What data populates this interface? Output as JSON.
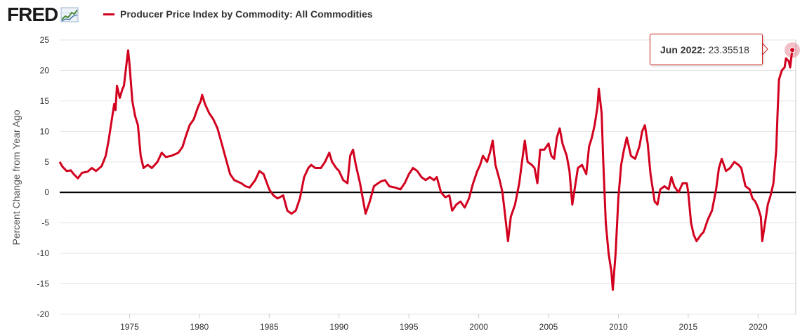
{
  "header": {
    "logo": "FRED",
    "logo_icon": "chart-line-icon",
    "legend_label": "Producer Price Index by Commodity: All Commodities"
  },
  "tooltip": {
    "date": "Jun 2022:",
    "value": "23.35518"
  },
  "colors": {
    "series": "#d2001e",
    "grid": "#e6e6e6",
    "zero_line": "#000000",
    "axis_text": "#333333"
  },
  "chart_data": {
    "type": "line",
    "title": "Producer Price Index by Commodity: All Commodities",
    "ylabel": "Percent Change from Year Ago",
    "xlabel": "",
    "xlim": [
      1970.0,
      2022.7
    ],
    "ylim": [
      -20,
      25
    ],
    "y_ticks": [
      25,
      20,
      15,
      10,
      5,
      0,
      -5,
      -10,
      -15,
      -20
    ],
    "x_ticks": [
      1975,
      1980,
      1985,
      1990,
      1995,
      2000,
      2005,
      2010,
      2015,
      2020
    ],
    "grid": "horizontal",
    "legend_placement": "top-left",
    "series": [
      {
        "name": "Producer Price Index by Commodity: All Commodities",
        "points": [
          [
            1970.0,
            5.0
          ],
          [
            1970.2,
            4.2
          ],
          [
            1970.5,
            3.5
          ],
          [
            1970.8,
            3.6
          ],
          [
            1971.0,
            3.0
          ],
          [
            1971.3,
            2.3
          ],
          [
            1971.6,
            3.2
          ],
          [
            1972.0,
            3.4
          ],
          [
            1972.3,
            4.0
          ],
          [
            1972.6,
            3.5
          ],
          [
            1973.0,
            4.3
          ],
          [
            1973.3,
            6.0
          ],
          [
            1973.5,
            8.5
          ],
          [
            1973.7,
            11.5
          ],
          [
            1973.9,
            14.5
          ],
          [
            1974.0,
            13.5
          ],
          [
            1974.1,
            17.5
          ],
          [
            1974.3,
            15.5
          ],
          [
            1974.5,
            17.0
          ],
          [
            1974.6,
            17.5
          ],
          [
            1974.8,
            21.5
          ],
          [
            1974.9,
            23.3
          ],
          [
            1975.0,
            21.0
          ],
          [
            1975.2,
            15.0
          ],
          [
            1975.4,
            12.5
          ],
          [
            1975.6,
            11.0
          ],
          [
            1975.8,
            6.0
          ],
          [
            1976.0,
            4.0
          ],
          [
            1976.3,
            4.5
          ],
          [
            1976.6,
            4.0
          ],
          [
            1977.0,
            5.0
          ],
          [
            1977.3,
            6.5
          ],
          [
            1977.6,
            5.8
          ],
          [
            1978.0,
            6.0
          ],
          [
            1978.5,
            6.5
          ],
          [
            1978.8,
            7.5
          ],
          [
            1979.0,
            9.0
          ],
          [
            1979.3,
            11.0
          ],
          [
            1979.6,
            12.0
          ],
          [
            1979.9,
            14.0
          ],
          [
            1980.1,
            15.0
          ],
          [
            1980.2,
            16.0
          ],
          [
            1980.4,
            14.5
          ],
          [
            1980.7,
            13.0
          ],
          [
            1981.0,
            12.0
          ],
          [
            1981.3,
            10.5
          ],
          [
            1981.6,
            8.0
          ],
          [
            1981.9,
            5.5
          ],
          [
            1982.2,
            3.0
          ],
          [
            1982.5,
            2.0
          ],
          [
            1983.0,
            1.5
          ],
          [
            1983.3,
            1.0
          ],
          [
            1983.6,
            0.8
          ],
          [
            1984.0,
            2.0
          ],
          [
            1984.3,
            3.5
          ],
          [
            1984.6,
            3.0
          ],
          [
            1985.0,
            0.5
          ],
          [
            1985.3,
            -0.5
          ],
          [
            1985.6,
            -1.0
          ],
          [
            1986.0,
            -0.5
          ],
          [
            1986.3,
            -3.0
          ],
          [
            1986.6,
            -3.5
          ],
          [
            1986.9,
            -3.0
          ],
          [
            1987.2,
            -1.0
          ],
          [
            1987.5,
            2.5
          ],
          [
            1987.8,
            4.0
          ],
          [
            1988.0,
            4.5
          ],
          [
            1988.3,
            4.0
          ],
          [
            1988.7,
            4.0
          ],
          [
            1989.0,
            5.0
          ],
          [
            1989.3,
            6.5
          ],
          [
            1989.5,
            5.0
          ],
          [
            1989.8,
            4.0
          ],
          [
            1990.0,
            3.5
          ],
          [
            1990.3,
            2.0
          ],
          [
            1990.6,
            1.5
          ],
          [
            1990.8,
            6.0
          ],
          [
            1991.0,
            7.0
          ],
          [
            1991.2,
            4.5
          ],
          [
            1991.5,
            1.5
          ],
          [
            1991.7,
            -1.0
          ],
          [
            1991.9,
            -3.5
          ],
          [
            1992.2,
            -1.5
          ],
          [
            1992.5,
            1.0
          ],
          [
            1992.8,
            1.5
          ],
          [
            1993.0,
            1.8
          ],
          [
            1993.3,
            2.0
          ],
          [
            1993.6,
            1.0
          ],
          [
            1994.0,
            0.8
          ],
          [
            1994.4,
            0.5
          ],
          [
            1994.7,
            1.5
          ],
          [
            1995.0,
            3.0
          ],
          [
            1995.3,
            4.0
          ],
          [
            1995.6,
            3.5
          ],
          [
            1995.9,
            2.5
          ],
          [
            1996.2,
            2.0
          ],
          [
            1996.5,
            2.5
          ],
          [
            1996.8,
            2.0
          ],
          [
            1997.0,
            2.5
          ],
          [
            1997.3,
            0.0
          ],
          [
            1997.6,
            -0.8
          ],
          [
            1997.9,
            -0.5
          ],
          [
            1998.1,
            -3.0
          ],
          [
            1998.4,
            -2.0
          ],
          [
            1998.7,
            -1.5
          ],
          [
            1999.0,
            -2.5
          ],
          [
            1999.3,
            -1.0
          ],
          [
            1999.6,
            1.5
          ],
          [
            1999.9,
            3.5
          ],
          [
            2000.1,
            4.5
          ],
          [
            2000.3,
            6.0
          ],
          [
            2000.6,
            5.0
          ],
          [
            2000.8,
            6.5
          ],
          [
            2001.0,
            8.5
          ],
          [
            2001.2,
            4.5
          ],
          [
            2001.5,
            2.0
          ],
          [
            2001.7,
            0.0
          ],
          [
            2001.9,
            -4.0
          ],
          [
            2002.1,
            -8.0
          ],
          [
            2002.3,
            -4.0
          ],
          [
            2002.6,
            -2.0
          ],
          [
            2002.9,
            1.5
          ],
          [
            2003.1,
            5.0
          ],
          [
            2003.3,
            8.5
          ],
          [
            2003.5,
            5.0
          ],
          [
            2003.8,
            4.5
          ],
          [
            2004.0,
            4.0
          ],
          [
            2004.2,
            1.5
          ],
          [
            2004.4,
            7.0
          ],
          [
            2004.7,
            7.0
          ],
          [
            2005.0,
            8.0
          ],
          [
            2005.2,
            6.0
          ],
          [
            2005.4,
            5.5
          ],
          [
            2005.6,
            9.0
          ],
          [
            2005.8,
            10.5
          ],
          [
            2006.0,
            8.0
          ],
          [
            2006.3,
            6.0
          ],
          [
            2006.5,
            3.5
          ],
          [
            2006.7,
            -2.0
          ],
          [
            2006.9,
            1.0
          ],
          [
            2007.1,
            4.0
          ],
          [
            2007.4,
            4.5
          ],
          [
            2007.7,
            3.0
          ],
          [
            2007.9,
            7.5
          ],
          [
            2008.1,
            9.0
          ],
          [
            2008.3,
            11.0
          ],
          [
            2008.5,
            14.0
          ],
          [
            2008.6,
            17.0
          ],
          [
            2008.8,
            13.0
          ],
          [
            2008.9,
            6.0
          ],
          [
            2009.1,
            -5.0
          ],
          [
            2009.3,
            -10.0
          ],
          [
            2009.5,
            -13.0
          ],
          [
            2009.6,
            -16.0
          ],
          [
            2009.8,
            -10.0
          ],
          [
            2010.0,
            -1.0
          ],
          [
            2010.2,
            4.5
          ],
          [
            2010.4,
            7.0
          ],
          [
            2010.6,
            9.0
          ],
          [
            2010.9,
            6.0
          ],
          [
            2011.2,
            5.5
          ],
          [
            2011.5,
            7.5
          ],
          [
            2011.7,
            10.0
          ],
          [
            2011.9,
            11.0
          ],
          [
            2012.1,
            8.0
          ],
          [
            2012.3,
            3.0
          ],
          [
            2012.6,
            -1.5
          ],
          [
            2012.8,
            -2.0
          ],
          [
            2013.0,
            0.5
          ],
          [
            2013.3,
            1.0
          ],
          [
            2013.6,
            0.5
          ],
          [
            2013.8,
            2.5
          ],
          [
            2014.0,
            1.0
          ],
          [
            2014.3,
            0.0
          ],
          [
            2014.6,
            1.5
          ],
          [
            2014.9,
            1.5
          ],
          [
            2015.0,
            0.0
          ],
          [
            2015.2,
            -5.0
          ],
          [
            2015.4,
            -7.0
          ],
          [
            2015.6,
            -8.0
          ],
          [
            2015.9,
            -7.0
          ],
          [
            2016.1,
            -6.5
          ],
          [
            2016.4,
            -4.5
          ],
          [
            2016.7,
            -3.0
          ],
          [
            2017.0,
            0.5
          ],
          [
            2017.2,
            4.0
          ],
          [
            2017.4,
            5.5
          ],
          [
            2017.7,
            3.5
          ],
          [
            2018.0,
            4.0
          ],
          [
            2018.3,
            5.0
          ],
          [
            2018.6,
            4.5
          ],
          [
            2018.8,
            4.0
          ],
          [
            2019.1,
            1.0
          ],
          [
            2019.4,
            0.5
          ],
          [
            2019.6,
            -1.0
          ],
          [
            2019.8,
            -1.5
          ],
          [
            2020.0,
            -2.5
          ],
          [
            2020.2,
            -4.0
          ],
          [
            2020.3,
            -8.0
          ],
          [
            2020.5,
            -5.0
          ],
          [
            2020.7,
            -2.0
          ],
          [
            2020.9,
            -0.5
          ],
          [
            2021.1,
            1.5
          ],
          [
            2021.3,
            7.0
          ],
          [
            2021.4,
            13.0
          ],
          [
            2021.5,
            18.5
          ],
          [
            2021.7,
            20.0
          ],
          [
            2021.9,
            20.5
          ],
          [
            2022.0,
            22.0
          ],
          [
            2022.2,
            21.5
          ],
          [
            2022.3,
            20.5
          ],
          [
            2022.45,
            23.35518
          ]
        ]
      }
    ],
    "annotations": [
      {
        "x": 2022.45,
        "y": 23.35518,
        "text": "Jun 2022: 23.35518"
      }
    ]
  }
}
